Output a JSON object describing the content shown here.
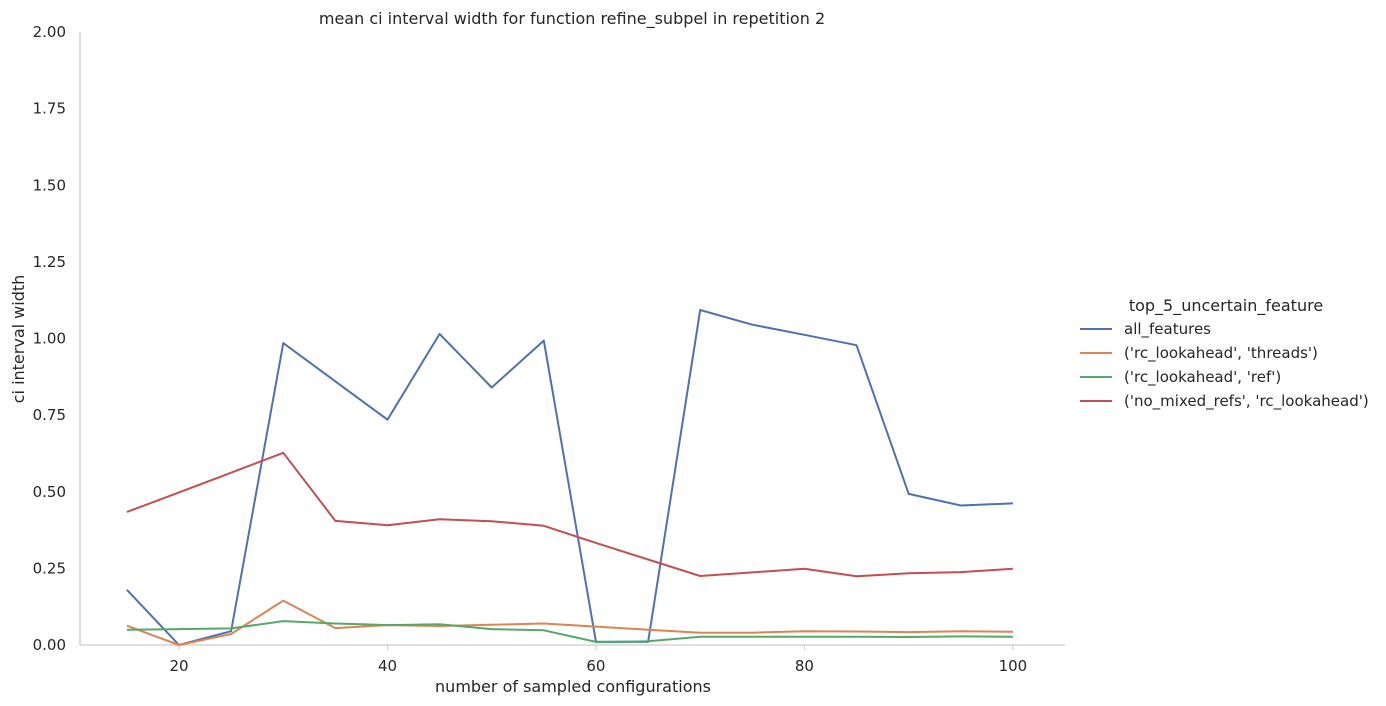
{
  "chart_data": {
    "type": "line",
    "title": "mean ci interval width for function refine_subpel in repetition 2",
    "xlabel": "number of sampled configurations",
    "ylabel": "ci interval width",
    "xlim": [
      10.5,
      105
    ],
    "ylim": [
      0,
      2
    ],
    "xticks": [
      20,
      40,
      60,
      80,
      100
    ],
    "yticks": [
      "0.00",
      "0.25",
      "0.50",
      "0.75",
      "1.00",
      "1.25",
      "1.50",
      "1.75",
      "2.00"
    ],
    "grid": false,
    "legend": {
      "title": "top_5_uncertain_feature",
      "placement": "right"
    },
    "x": [
      15,
      20,
      25,
      30,
      35,
      40,
      45,
      50,
      55,
      60,
      65,
      70,
      75,
      80,
      85,
      90,
      95,
      100
    ],
    "series": [
      {
        "name": "all_features",
        "color": "#4c72b0",
        "values": [
          0.18,
          0.0,
          0.045,
          0.985,
          0.86,
          0.735,
          1.015,
          0.84,
          0.993,
          0.01,
          0.01,
          1.093,
          1.045,
          1.012,
          0.978,
          0.493,
          0.455,
          0.462
        ]
      },
      {
        "name": "('rc_lookahead', 'threads')",
        "color": "#dd8452",
        "values": [
          0.063,
          0.0,
          0.036,
          0.145,
          0.055,
          0.065,
          0.062,
          0.066,
          0.07,
          0.06,
          0.05,
          0.04,
          0.04,
          0.045,
          0.044,
          0.042,
          0.045,
          0.043
        ]
      },
      {
        "name": "('rc_lookahead', 'ref')",
        "color": "#55a868",
        "values": [
          0.05,
          0.052,
          0.054,
          0.078,
          0.07,
          0.065,
          0.068,
          0.052,
          0.048,
          0.01,
          0.012,
          0.027,
          0.027,
          0.027,
          0.027,
          0.026,
          0.028,
          0.027
        ]
      },
      {
        "name": "('no_mixed_refs', 'rc_lookahead')",
        "color": "#c44e52",
        "values": [
          0.434,
          0.498,
          0.562,
          0.627,
          0.405,
          0.391,
          0.41,
          0.404,
          0.389,
          0.333,
          0.279,
          0.225,
          0.237,
          0.249,
          0.224,
          0.234,
          0.238,
          0.249
        ]
      }
    ]
  }
}
